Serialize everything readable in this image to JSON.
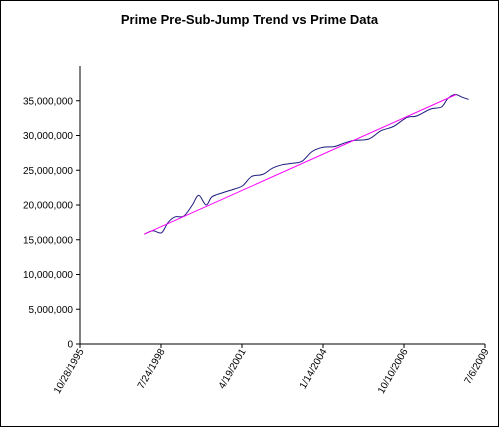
{
  "chart_data": {
    "type": "line",
    "title": "Prime Pre-Sub-Jump Trend vs Prime Data",
    "xlabel": "",
    "ylabel": "",
    "x_range": [
      "1995-10-28",
      "2009-07-06"
    ],
    "ylim": [
      0,
      40000000
    ],
    "y_ticks": [
      0,
      5000000,
      10000000,
      15000000,
      20000000,
      25000000,
      30000000,
      35000000
    ],
    "y_tick_labels": [
      "0",
      "5,000,000",
      "10,000,000",
      "15,000,000",
      "20,000,000",
      "25,000,000",
      "30,000,000",
      "35,000,000"
    ],
    "x_ticks": [
      "1995-10-28",
      "1998-07-24",
      "2001-04-19",
      "2004-01-14",
      "2006-10-10",
      "2009-07-06"
    ],
    "x_tick_labels": [
      "10/28/1995",
      "7/24/1998",
      "4/19/2001",
      "1/14/2004",
      "10/10/2006",
      "7/6/2009"
    ],
    "grid": false,
    "legend": "none",
    "series": [
      {
        "color": "#1a1a80",
        "points": [
          [
            "1997-12-30",
            15800000
          ],
          [
            "1998-04-15",
            16300000
          ],
          [
            "1998-07-30",
            16000000
          ],
          [
            "1998-10-20",
            17500000
          ],
          [
            "1999-01-15",
            18300000
          ],
          [
            "1999-05-01",
            18400000
          ],
          [
            "1999-08-15",
            20000000
          ],
          [
            "1999-11-01",
            21400000
          ],
          [
            "2000-02-01",
            20000000
          ],
          [
            "2000-04-15",
            21200000
          ],
          [
            "2000-09-01",
            21800000
          ],
          [
            "2001-01-15",
            22300000
          ],
          [
            "2001-05-01",
            22800000
          ],
          [
            "2001-08-15",
            24100000
          ],
          [
            "2002-01-01",
            24400000
          ],
          [
            "2002-05-01",
            25300000
          ],
          [
            "2002-09-01",
            25800000
          ],
          [
            "2003-01-01",
            26000000
          ],
          [
            "2003-05-01",
            26300000
          ],
          [
            "2003-09-01",
            27700000
          ],
          [
            "2004-01-15",
            28300000
          ],
          [
            "2004-06-01",
            28400000
          ],
          [
            "2004-10-01",
            28900000
          ],
          [
            "2005-02-01",
            29300000
          ],
          [
            "2005-08-01",
            29500000
          ],
          [
            "2006-01-01",
            30700000
          ],
          [
            "2006-06-01",
            31300000
          ],
          [
            "2006-11-15",
            32600000
          ],
          [
            "2007-03-15",
            32800000
          ],
          [
            "2007-09-01",
            33800000
          ],
          [
            "2008-01-15",
            34100000
          ],
          [
            "2008-04-01",
            35300000
          ],
          [
            "2008-07-01",
            35900000
          ],
          [
            "2008-10-01",
            35500000
          ],
          [
            "2008-12-15",
            35200000
          ]
        ]
      },
      {
        "color": "#ff00ff",
        "points": [
          [
            "1997-12-30",
            15800000
          ],
          [
            "2008-07-15",
            35900000
          ]
        ]
      }
    ]
  }
}
